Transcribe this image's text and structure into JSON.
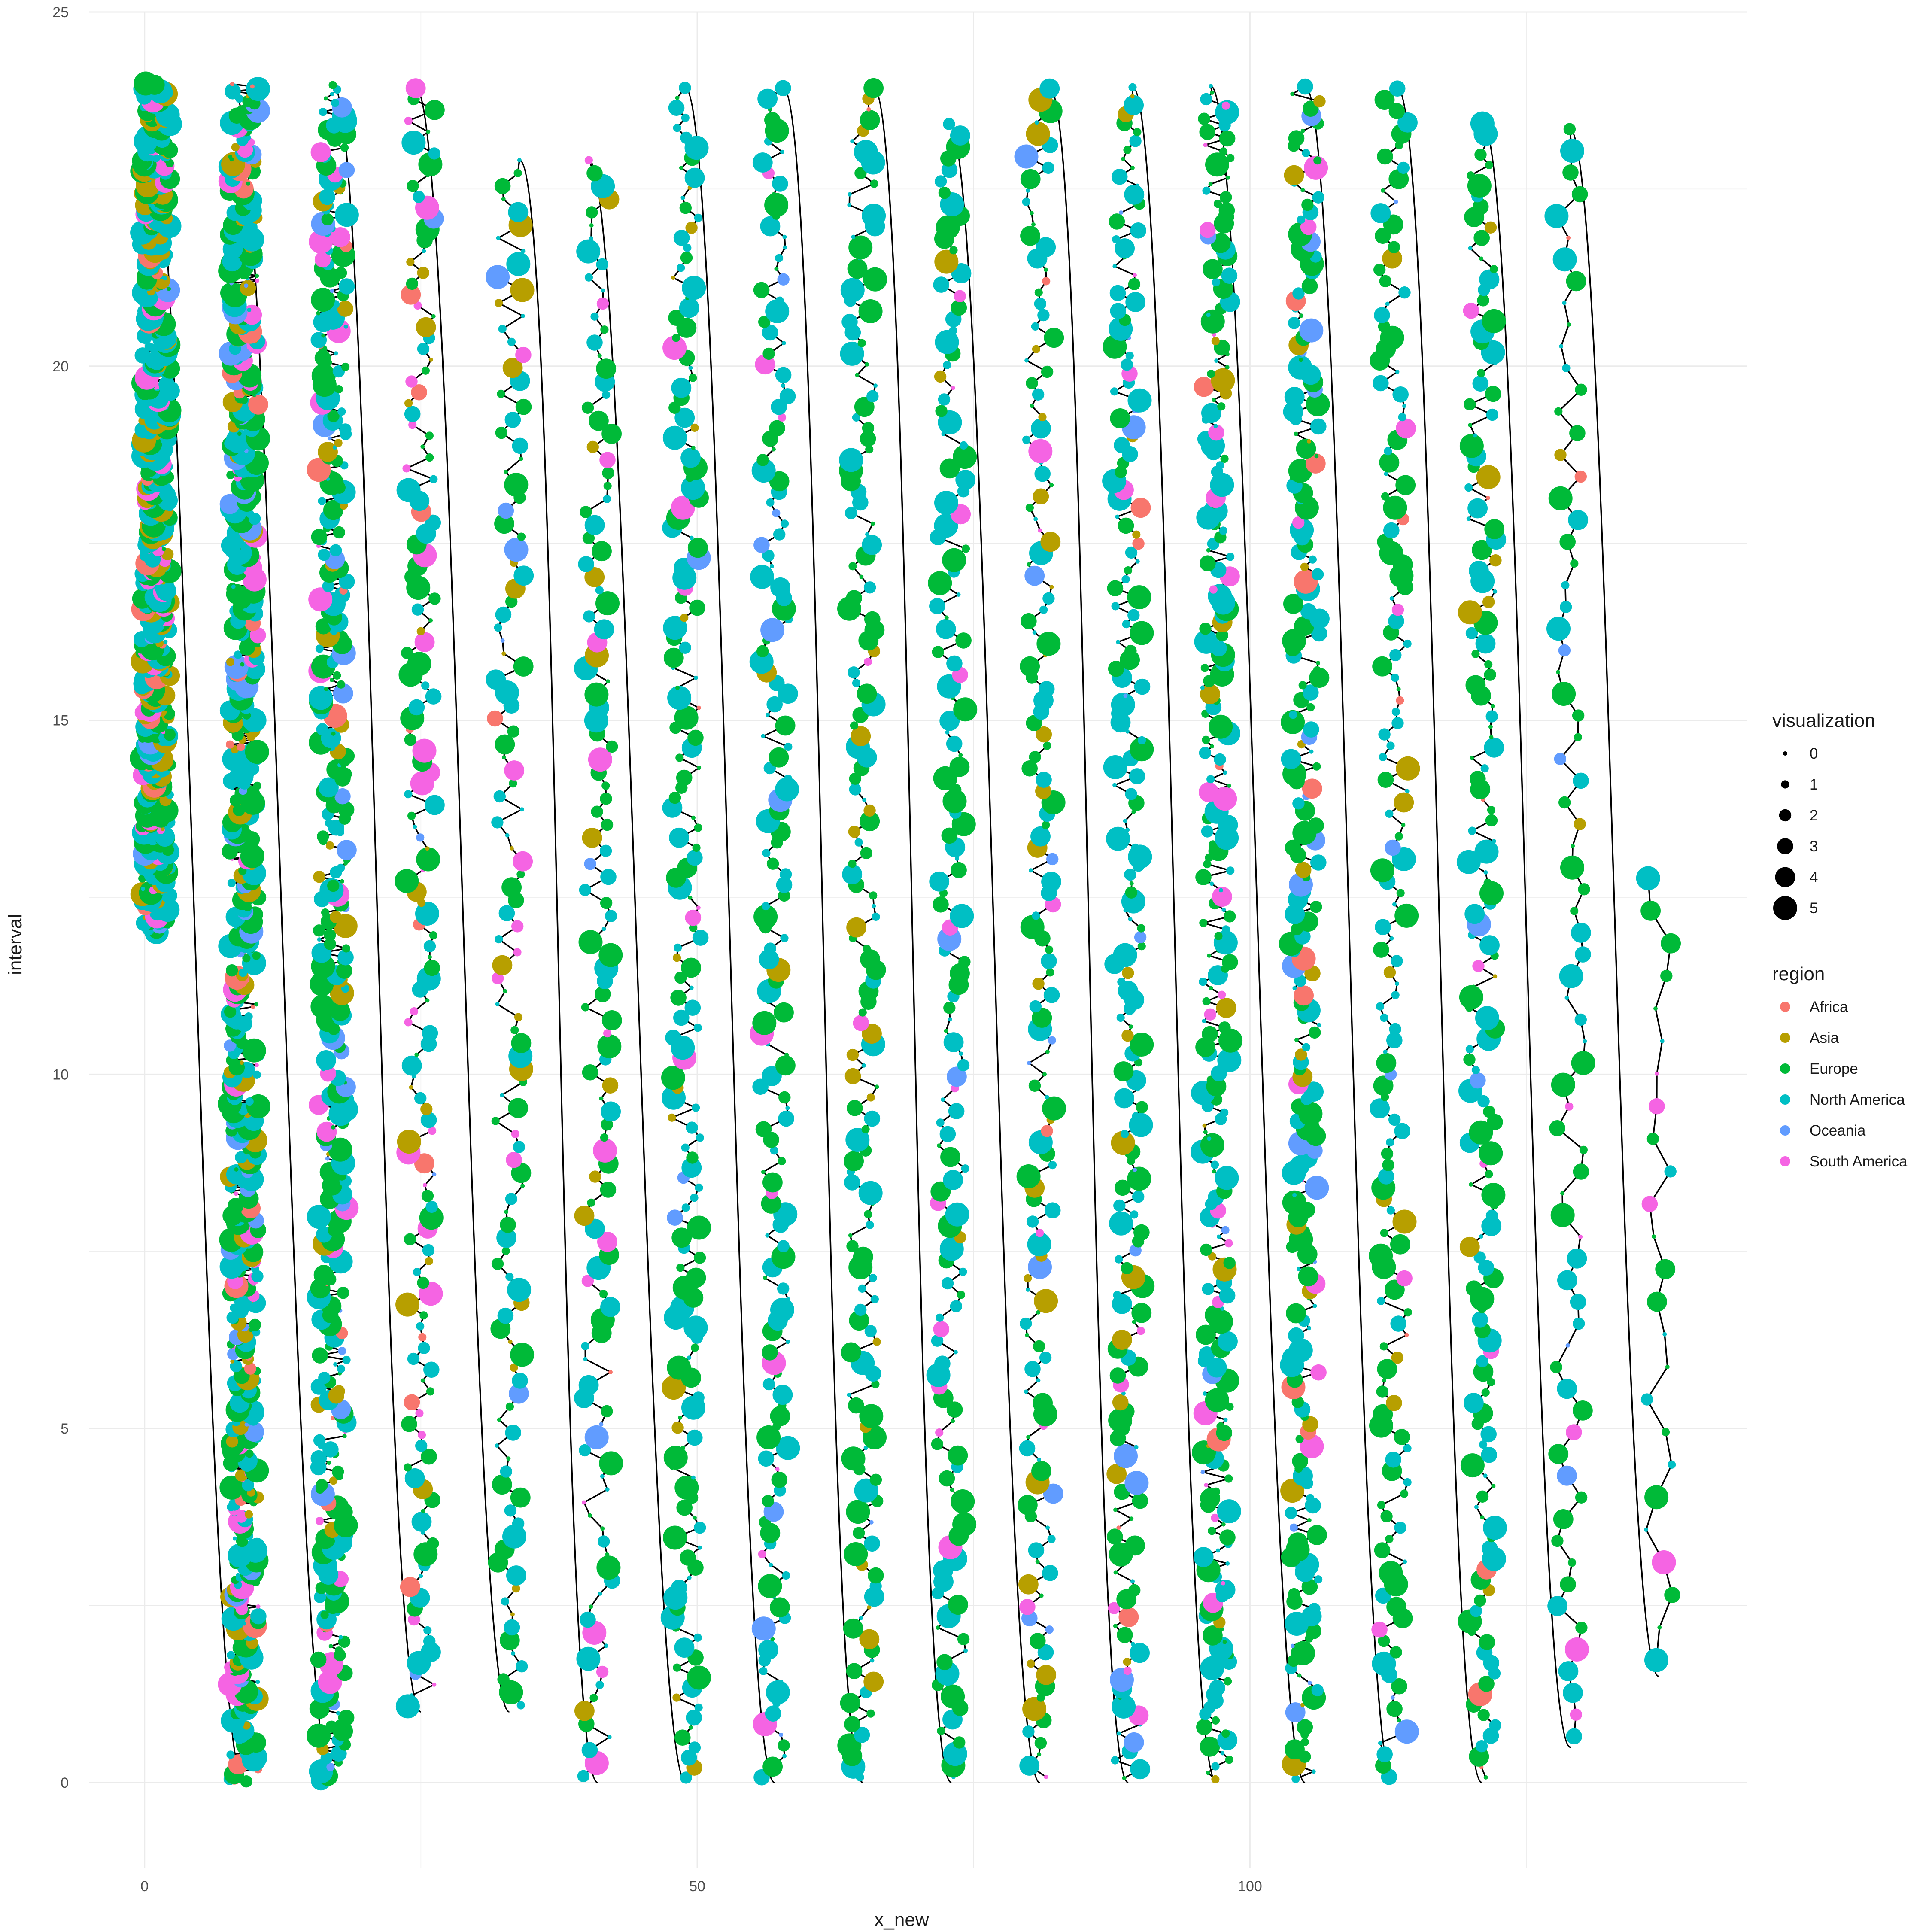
{
  "chart_data": {
    "type": "scatter",
    "xlabel": "x_new",
    "ylabel": "interval",
    "xlim": [
      -5,
      145
    ],
    "ylim": [
      -1.2,
      25
    ],
    "x_ticks": [
      0,
      50,
      100
    ],
    "y_ticks": [
      0,
      5,
      10,
      15,
      20,
      25
    ],
    "grid": true,
    "legend_position": "right",
    "size_legend": {
      "title": "visualization",
      "levels": [
        0,
        1,
        2,
        3,
        4,
        5
      ]
    },
    "color_legend": {
      "title": "region",
      "entries": [
        {
          "name": "Africa",
          "color": "#F8766D"
        },
        {
          "name": "Asia",
          "color": "#B79F00"
        },
        {
          "name": "Europe",
          "color": "#00BA38"
        },
        {
          "name": "North America",
          "color": "#00BFC4"
        },
        {
          "name": "Oceania",
          "color": "#619CFF"
        },
        {
          "name": "South America",
          "color": "#F564E3"
        }
      ]
    },
    "columns": [
      {
        "x": 1,
        "y_min": 12,
        "y_max": 24,
        "n": 650,
        "weights": [
          0.02,
          0.16,
          0.27,
          0.45,
          0.03,
          0.07
        ]
      },
      {
        "x": 9,
        "y_min": 0,
        "y_max": 24,
        "n": 700,
        "weights": [
          0.05,
          0.12,
          0.33,
          0.36,
          0.05,
          0.09
        ]
      },
      {
        "x": 17,
        "y_min": 0,
        "y_max": 24,
        "n": 380,
        "weights": [
          0.04,
          0.1,
          0.38,
          0.36,
          0.04,
          0.08
        ]
      },
      {
        "x": 25,
        "y_min": 1,
        "y_max": 24,
        "n": 150,
        "weights": [
          0.02,
          0.1,
          0.36,
          0.32,
          0.03,
          0.17
        ]
      },
      {
        "x": 33,
        "y_min": 1,
        "y_max": 23,
        "n": 120,
        "weights": [
          0.02,
          0.13,
          0.35,
          0.34,
          0.05,
          0.11
        ]
      },
      {
        "x": 41,
        "y_min": 0,
        "y_max": 23,
        "n": 125,
        "weights": [
          0.02,
          0.07,
          0.42,
          0.38,
          0.03,
          0.08
        ]
      },
      {
        "x": 49,
        "y_min": 0,
        "y_max": 24,
        "n": 170,
        "weights": [
          0.01,
          0.06,
          0.43,
          0.42,
          0.04,
          0.04
        ]
      },
      {
        "x": 57,
        "y_min": 0,
        "y_max": 24,
        "n": 160,
        "weights": [
          0.01,
          0.03,
          0.4,
          0.48,
          0.03,
          0.05
        ]
      },
      {
        "x": 65,
        "y_min": 0,
        "y_max": 24,
        "n": 160,
        "weights": [
          0.01,
          0.1,
          0.45,
          0.41,
          0.01,
          0.02
        ]
      },
      {
        "x": 73,
        "y_min": 0,
        "y_max": 23.5,
        "n": 145,
        "weights": [
          0.01,
          0.02,
          0.42,
          0.43,
          0.01,
          0.11
        ]
      },
      {
        "x": 81,
        "y_min": 0,
        "y_max": 24,
        "n": 150,
        "weights": [
          0.02,
          0.12,
          0.4,
          0.36,
          0.04,
          0.06
        ]
      },
      {
        "x": 89,
        "y_min": 0,
        "y_max": 24,
        "n": 190,
        "weights": [
          0.02,
          0.11,
          0.37,
          0.42,
          0.05,
          0.03
        ]
      },
      {
        "x": 97,
        "y_min": 0,
        "y_max": 24,
        "n": 260,
        "weights": [
          0.02,
          0.06,
          0.46,
          0.39,
          0.03,
          0.04
        ]
      },
      {
        "x": 105,
        "y_min": 0,
        "y_max": 24,
        "n": 230,
        "weights": [
          0.03,
          0.07,
          0.43,
          0.39,
          0.05,
          0.03
        ]
      },
      {
        "x": 113,
        "y_min": 0,
        "y_max": 24,
        "n": 150,
        "weights": [
          0.02,
          0.04,
          0.44,
          0.44,
          0.03,
          0.03
        ]
      },
      {
        "x": 121,
        "y_min": 0,
        "y_max": 23.5,
        "n": 160,
        "weights": [
          0.02,
          0.07,
          0.42,
          0.43,
          0.02,
          0.04
        ]
      },
      {
        "x": 129,
        "y_min": 0.5,
        "y_max": 23.5,
        "n": 75,
        "weights": [
          0.02,
          0.04,
          0.54,
          0.3,
          0.02,
          0.08
        ]
      },
      {
        "x": 137,
        "y_min": 1.5,
        "y_max": 13,
        "n": 25,
        "weights": [
          0.0,
          0.0,
          0.58,
          0.38,
          0.0,
          0.04
        ]
      }
    ]
  }
}
